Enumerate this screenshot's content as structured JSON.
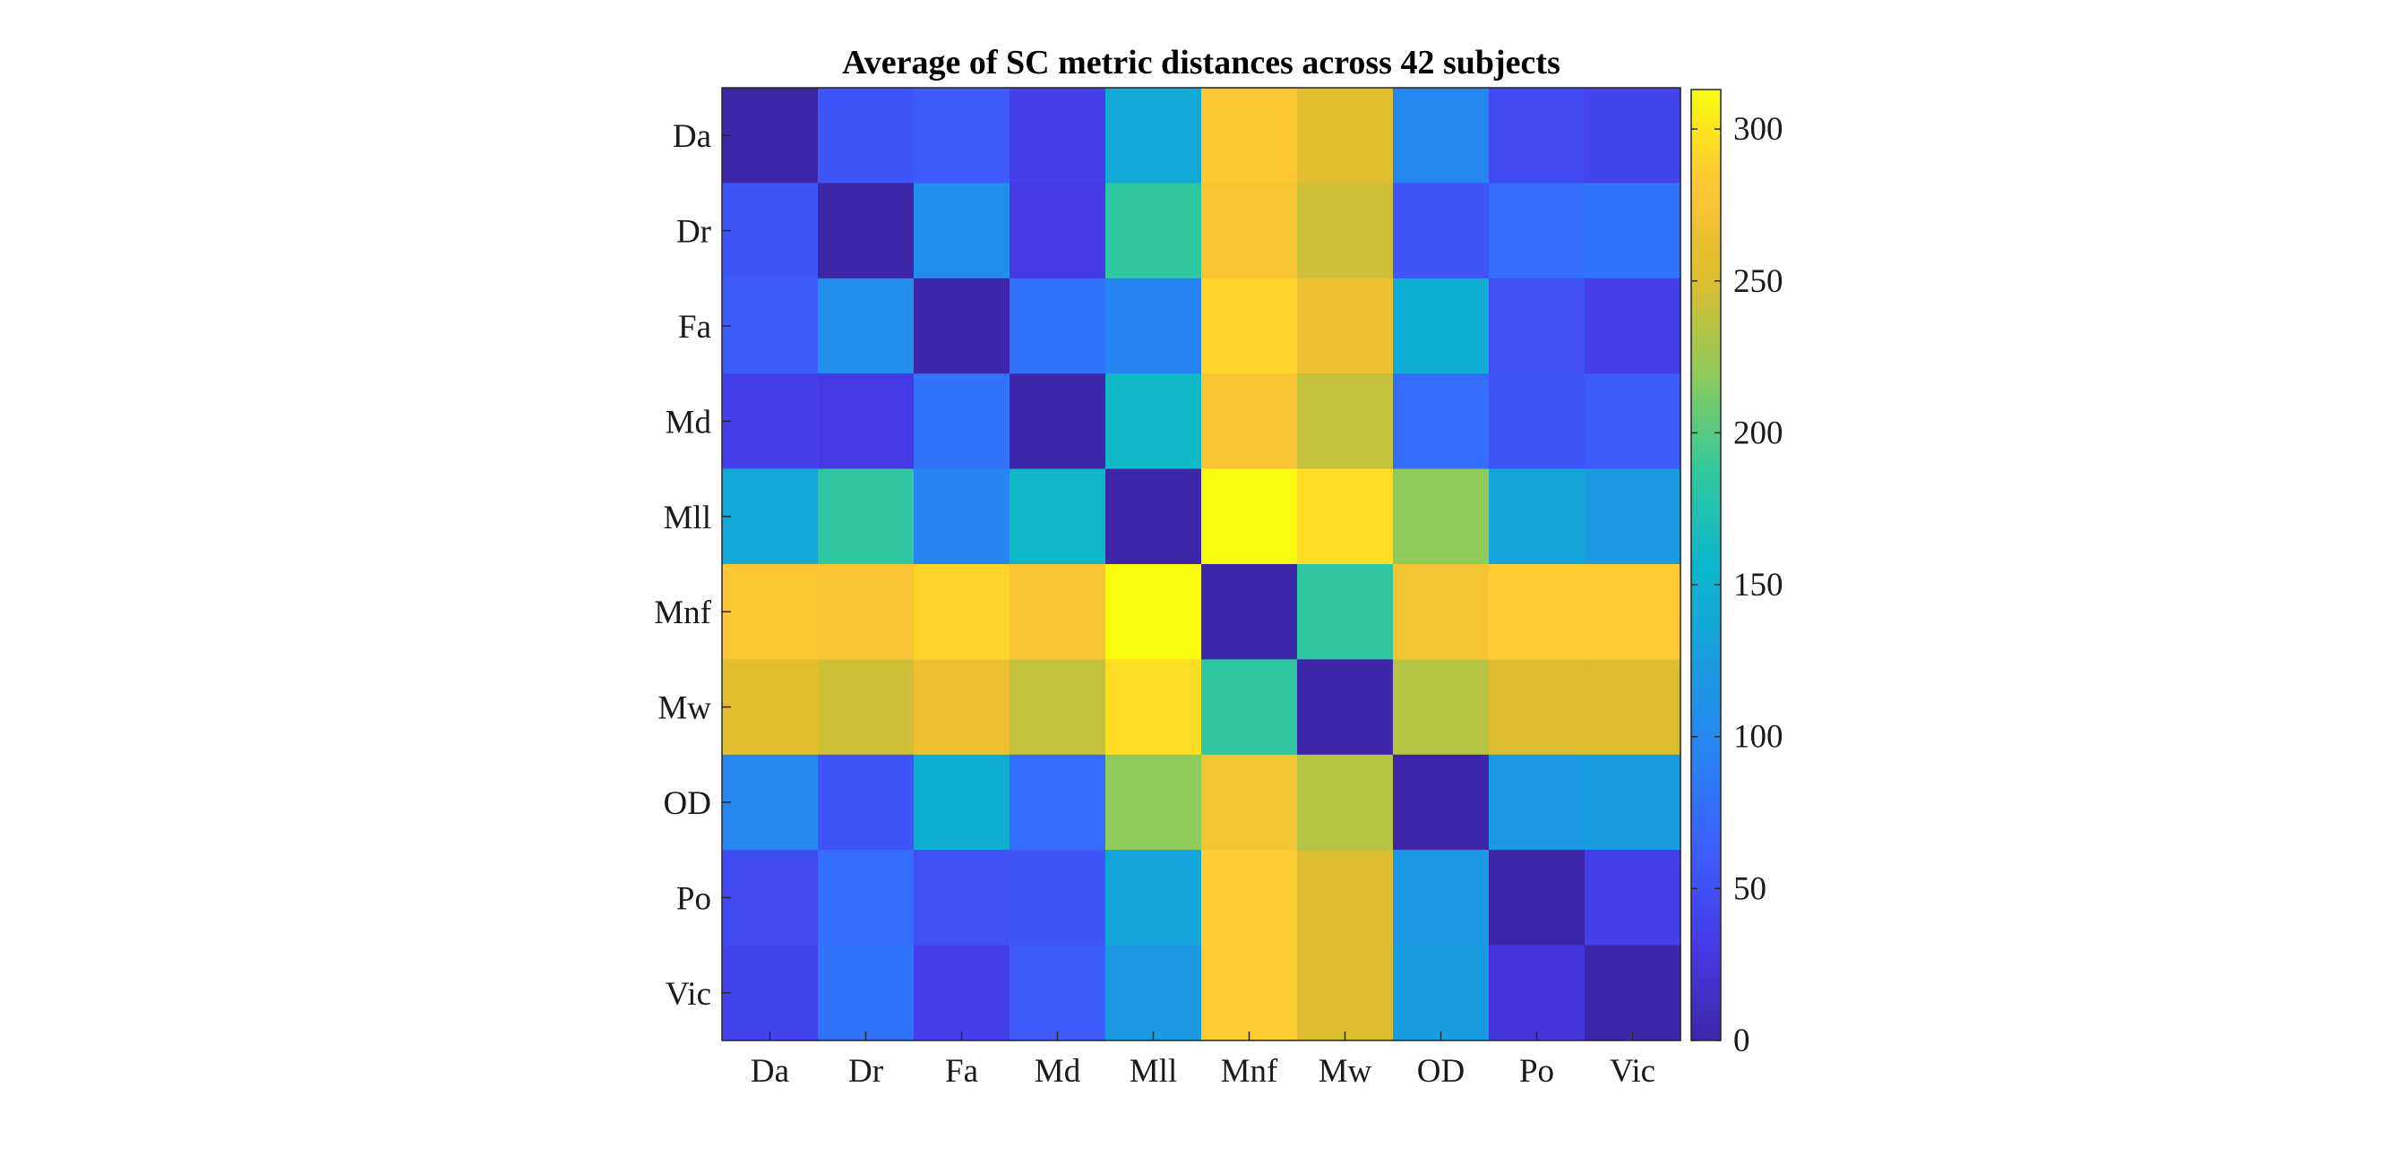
{
  "chart_data": {
    "type": "heatmap",
    "title": "Average of SC metric distances across 42 subjects",
    "xlabel": "",
    "ylabel": "",
    "x_categories": [
      "Da",
      "Dr",
      "Fa",
      "Md",
      "Mll",
      "Mnf",
      "Mw",
      "OD",
      "Po",
      "Vic"
    ],
    "y_categories": [
      "Da",
      "Dr",
      "Fa",
      "Md",
      "Mll",
      "Mnf",
      "Mw",
      "OD",
      "Po",
      "Vic"
    ],
    "values": [
      [
        0,
        55,
        60,
        35,
        140,
        280,
        255,
        100,
        45,
        40
      ],
      [
        55,
        0,
        105,
        30,
        185,
        275,
        245,
        55,
        75,
        80
      ],
      [
        60,
        105,
        0,
        80,
        95,
        290,
        265,
        145,
        50,
        35
      ],
      [
        35,
        30,
        80,
        0,
        160,
        275,
        240,
        75,
        55,
        60
      ],
      [
        140,
        185,
        95,
        160,
        0,
        315,
        295,
        220,
        135,
        120
      ],
      [
        280,
        275,
        290,
        275,
        315,
        0,
        185,
        270,
        285,
        285
      ],
      [
        255,
        245,
        265,
        240,
        295,
        185,
        0,
        235,
        250,
        250
      ],
      [
        100,
        55,
        145,
        75,
        220,
        270,
        235,
        0,
        120,
        125
      ],
      [
        45,
        75,
        50,
        55,
        135,
        285,
        250,
        120,
        0,
        35
      ],
      [
        40,
        80,
        35,
        60,
        120,
        285,
        250,
        125,
        25,
        0
      ]
    ],
    "colormap": "parula",
    "colorbar": {
      "range": [
        0,
        313
      ],
      "ticks": [
        0,
        50,
        100,
        150,
        200,
        250,
        300
      ]
    },
    "grid": false,
    "legend": "none"
  }
}
